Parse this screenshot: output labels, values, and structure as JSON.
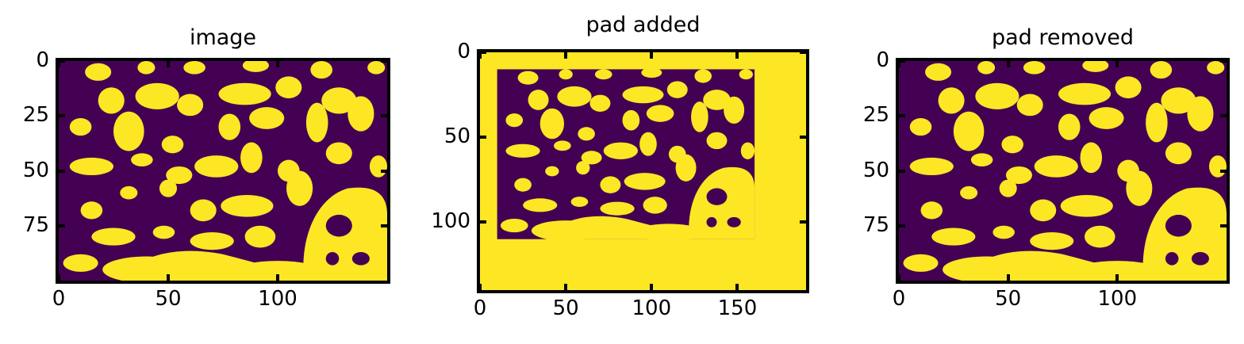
{
  "colors": {
    "background": "#440154",
    "foreground": "#fde725",
    "axes": "#000000"
  },
  "chart_data": [
    {
      "type": "heatmap",
      "title": "image",
      "xlim": [
        0,
        150
      ],
      "ylim": [
        100,
        0
      ],
      "xticks": [
        0,
        50,
        100
      ],
      "xtick_labels": [
        "0",
        "50",
        "100"
      ],
      "yticks": [
        0,
        25,
        50,
        75
      ],
      "ytick_labels": [
        "0",
        "25",
        "50",
        "75"
      ],
      "colormap": "viridis",
      "values_binary": [
        0,
        1
      ],
      "grid": false
    },
    {
      "type": "heatmap",
      "title": "pad added",
      "xlim": [
        0,
        190
      ],
      "ylim": [
        140,
        0
      ],
      "xticks": [
        0,
        50,
        100,
        150
      ],
      "xtick_labels": [
        "0",
        "50",
        "100",
        "150"
      ],
      "yticks": [
        0,
        50,
        100
      ],
      "ytick_labels": [
        "0",
        "50",
        "100"
      ],
      "colormap": "viridis",
      "values_binary": [
        0,
        1
      ],
      "inner_region": {
        "x": [
          10,
          160
        ],
        "y": [
          10,
          110
        ]
      },
      "grid": false
    },
    {
      "type": "heatmap",
      "title": "pad removed",
      "xlim": [
        0,
        150
      ],
      "ylim": [
        100,
        0
      ],
      "xticks": [
        0,
        50,
        100
      ],
      "xtick_labels": [
        "0",
        "50",
        "100"
      ],
      "yticks": [
        0,
        25,
        50,
        75
      ],
      "ytick_labels": [
        "0",
        "25",
        "50",
        "75"
      ],
      "colormap": "viridis",
      "values_binary": [
        0,
        1
      ],
      "grid": false
    }
  ]
}
